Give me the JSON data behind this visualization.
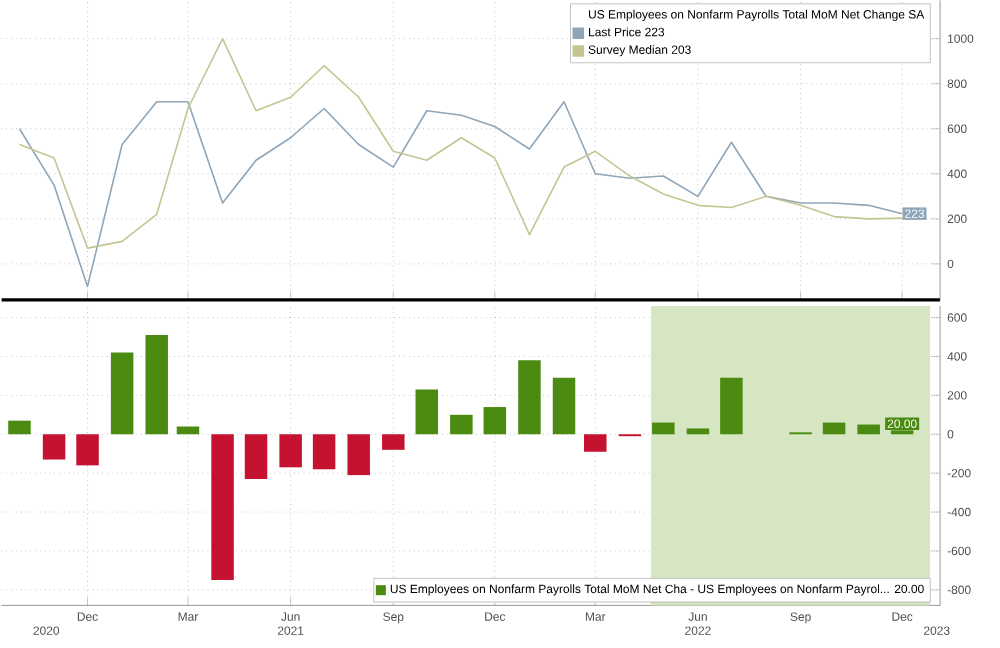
{
  "chart_data": [
    {
      "type": "line",
      "legend_title": "US Employees on Nonfarm Payrolls Total MoM Net Change SA",
      "x": [
        "2020-10",
        "2020-11",
        "2020-12",
        "2021-01",
        "2021-02",
        "2021-03",
        "2021-04",
        "2021-05",
        "2021-06",
        "2021-07",
        "2021-08",
        "2021-09",
        "2021-10",
        "2021-11",
        "2021-12",
        "2022-01",
        "2022-02",
        "2022-03",
        "2022-04",
        "2022-05",
        "2022-06",
        "2022-07",
        "2022-08",
        "2022-09",
        "2022-10",
        "2022-11",
        "2022-12"
      ],
      "series": [
        {
          "name": "Last Price 223",
          "color": "#8fa5b8",
          "values": [
            600,
            350,
            -100,
            530,
            720,
            720,
            270,
            460,
            560,
            690,
            530,
            430,
            680,
            660,
            610,
            510,
            720,
            400,
            380,
            390,
            300,
            540,
            300,
            270,
            270,
            260,
            223
          ],
          "value_labels": [
            null,
            null,
            null,
            null,
            null,
            null,
            null,
            null,
            null,
            null,
            null,
            null,
            null,
            null,
            null,
            null,
            null,
            null,
            null,
            null,
            null,
            null,
            null,
            null,
            null,
            null,
            "223"
          ]
        },
        {
          "name": "Survey Median 203",
          "color": "#c5c592",
          "values": [
            530,
            470,
            70,
            100,
            220,
            690,
            1000,
            680,
            740,
            880,
            740,
            500,
            460,
            560,
            470,
            130,
            430,
            500,
            390,
            310,
            260,
            250,
            300,
            260,
            210,
            200,
            203
          ]
        }
      ],
      "xlim": [
        "2020-09-15",
        "2023-01-04"
      ],
      "xticks": [
        {
          "value": "2020-12",
          "label": null
        },
        {
          "value": "2021-03",
          "label": null
        },
        {
          "value": "2021-06",
          "label": null
        },
        {
          "value": "2021-09",
          "label": null
        },
        {
          "value": "2021-12",
          "label": null
        },
        {
          "value": "2022-03",
          "label": null
        },
        {
          "value": "2022-06",
          "label": null
        },
        {
          "value": "2022-09",
          "label": null
        },
        {
          "value": "2022-12",
          "label": null
        }
      ],
      "ylim": [
        -160,
        1170
      ],
      "yticks": [
        0,
        200,
        400,
        600,
        800,
        1000
      ],
      "grid": true,
      "legend": "top right",
      "tick_labels": "y"
    },
    {
      "type": "bar",
      "x": [
        "2020-10",
        "2020-11",
        "2020-12",
        "2021-01",
        "2021-02",
        "2021-03",
        "2021-04",
        "2021-05",
        "2021-06",
        "2021-07",
        "2021-08",
        "2021-09",
        "2021-10",
        "2021-11",
        "2021-12",
        "2022-01",
        "2022-02",
        "2022-03",
        "2022-04",
        "2022-05",
        "2022-06",
        "2022-07",
        "2022-08",
        "2022-09",
        "2022-10",
        "2022-11",
        "2022-12"
      ],
      "series": [
        {
          "name": "US Employees on Nonfarm Payrolls Total MoM Net Cha - US Employees on Nonfarm Payrol... 20.00",
          "color": "#4b8b12",
          "colors": [
            "#4b8b12",
            "#c41230",
            "#c41230",
            "#4b8b12",
            "#4b8b12",
            "#4b8b12",
            "#c41230",
            "#c41230",
            "#c41230",
            "#c41230",
            "#c41230",
            "#c41230",
            "#4b8b12",
            "#4b8b12",
            "#4b8b12",
            "#4b8b12",
            "#4b8b12",
            "#c41230",
            "#c41230",
            "#4b8b12",
            "#4b8b12",
            "#4b8b12",
            "#4b8b12",
            "#4b8b12",
            "#4b8b12",
            "#4b8b12",
            "#4b8b12"
          ],
          "values": [
            70,
            -130,
            -160,
            420,
            510,
            40,
            -750,
            -230,
            -170,
            -180,
            -210,
            -80,
            230,
            100,
            140,
            380,
            290,
            -90,
            -10,
            60,
            30,
            290,
            0,
            10,
            60,
            50,
            20
          ],
          "value_labels": [
            null,
            null,
            null,
            null,
            null,
            null,
            null,
            null,
            null,
            null,
            null,
            null,
            null,
            null,
            null,
            null,
            null,
            null,
            null,
            null,
            null,
            null,
            null,
            null,
            null,
            null,
            "20.00"
          ]
        }
      ],
      "bands": [
        {
          "axis": "x",
          "from": "2022-04-20",
          "to": "2022-12-26",
          "color": "#d6e5c2"
        }
      ],
      "xlim": [
        "2020-09-15",
        "2023-01-04"
      ],
      "xticks": [
        {
          "value": "2020-12",
          "label": "Dec"
        },
        {
          "value": "2021-03",
          "label": "Mar"
        },
        {
          "value": "2021-06",
          "label": "Jun"
        },
        {
          "value": "2021-09",
          "label": "Sep"
        },
        {
          "value": "2021-12",
          "label": "Dec"
        },
        {
          "value": "2022-03",
          "label": "Mar"
        },
        {
          "value": "2022-06",
          "label": "Jun"
        },
        {
          "value": "2022-09",
          "label": "Sep"
        },
        {
          "value": "2022-12",
          "label": "Dec"
        }
      ],
      "x2lim": [
        "2020-09-15",
        "2023-01-04"
      ],
      "x2ticks": [
        {
          "value": "2020-10-25",
          "label": "2020"
        },
        {
          "value": "2021-06",
          "label": "2021"
        },
        {
          "value": "2022-06",
          "label": "2022"
        },
        {
          "value": "2023-01",
          "label": "2023"
        }
      ],
      "ylim": [
        -880,
        660
      ],
      "yticks": [
        -800,
        -600,
        -400,
        -200,
        0,
        200,
        400,
        600
      ],
      "grid": true,
      "legend": "bottom right"
    }
  ]
}
